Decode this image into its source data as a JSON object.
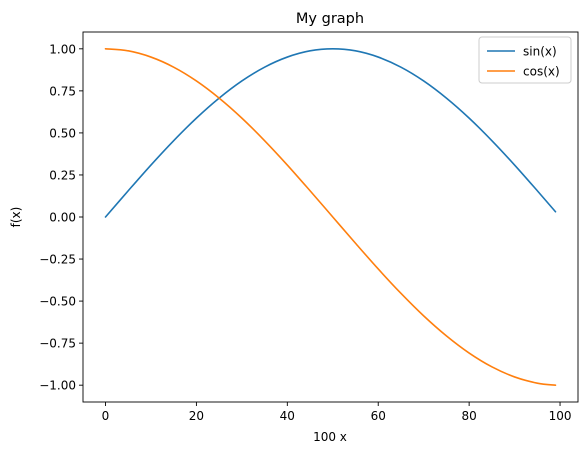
{
  "chart_data": {
    "type": "line",
    "title": "My graph",
    "xlabel": "100 x",
    "ylabel": "f(x)",
    "xlim": [
      -4.95,
      103.95
    ],
    "ylim": [
      -1.1,
      1.1
    ],
    "xticks": [
      0,
      20,
      40,
      60,
      80,
      100
    ],
    "xtick_labels": [
      "0",
      "20",
      "40",
      "60",
      "80",
      "100"
    ],
    "yticks": [
      1.0,
      0.75,
      0.5,
      0.25,
      0.0,
      -0.25,
      -0.5,
      -0.75,
      -1.0
    ],
    "ytick_labels": [
      "1.00",
      "0.75",
      "0.50",
      "0.25",
      "0.00",
      "−0.25",
      "−0.50",
      "−0.75",
      "−1.00"
    ],
    "grid": false,
    "legend_position": "top-right",
    "series": [
      {
        "name": "sin(x)",
        "color": "#1f77b4",
        "x": [
          0,
          5,
          10,
          15,
          20,
          25,
          30,
          35,
          40,
          45,
          50,
          55,
          60,
          65,
          70,
          75,
          80,
          85,
          90,
          95,
          99
        ],
        "y": [
          0.0,
          0.156,
          0.309,
          0.454,
          0.588,
          0.707,
          0.809,
          0.891,
          0.951,
          0.988,
          1.0,
          0.988,
          0.951,
          0.891,
          0.809,
          0.707,
          0.588,
          0.454,
          0.309,
          0.156,
          0.031
        ]
      },
      {
        "name": "cos(x)",
        "color": "#ff7f0e",
        "x": [
          0,
          5,
          10,
          15,
          20,
          25,
          30,
          35,
          40,
          45,
          50,
          55,
          60,
          65,
          70,
          75,
          80,
          85,
          90,
          95,
          99
        ],
        "y": [
          1.0,
          0.988,
          0.951,
          0.891,
          0.809,
          0.707,
          0.588,
          0.454,
          0.309,
          0.156,
          0.0,
          -0.156,
          -0.309,
          -0.454,
          -0.588,
          -0.707,
          -0.809,
          -0.891,
          -0.951,
          -0.988,
          -1.0
        ]
      }
    ]
  }
}
